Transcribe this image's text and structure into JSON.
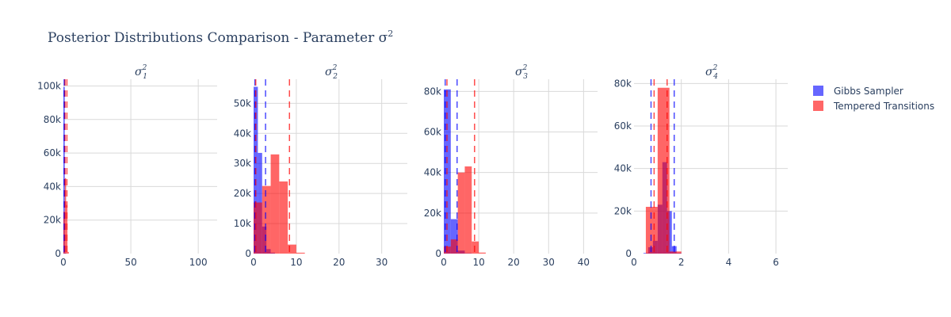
{
  "title": "Posterior Distributions Comparison - Parameter σ",
  "title_sup": "2",
  "legend": [
    {
      "name": "Gibbs Sampler",
      "color": "#0000ff"
    },
    {
      "name": "Tempered Transitions",
      "color": "#ff0000"
    }
  ],
  "colors": {
    "gibbs": "#0000ff",
    "tempered": "#ff0000",
    "grid": "#d9d9d9",
    "text": "#2a3f5f"
  },
  "chart_data": [
    {
      "type": "histogram",
      "subtitle": "σ",
      "sub_index": "1",
      "sup": "2",
      "xlim": [
        0,
        114
      ],
      "ylim": [
        0,
        104000
      ],
      "xticks": [
        {
          "v": 0,
          "label": "0"
        },
        {
          "v": 50,
          "label": "50"
        },
        {
          "v": 100,
          "label": "100"
        }
      ],
      "yticks": [
        {
          "v": 0,
          "label": "0"
        },
        {
          "v": 20000,
          "label": "20k"
        },
        {
          "v": 40000,
          "label": "40k"
        },
        {
          "v": 60000,
          "label": "60k"
        },
        {
          "v": 80000,
          "label": "80k"
        },
        {
          "v": 100000,
          "label": "100k"
        }
      ],
      "series": [
        {
          "name": "Gibbs Sampler",
          "bins": [
            {
              "x0": 0,
              "x1": 1,
              "y": 99500
            },
            {
              "x0": 1,
              "x1": 2,
              "y": 500
            }
          ]
        },
        {
          "name": "Tempered Transitions",
          "bins": [
            {
              "x0": 0,
              "x1": 1,
              "y": 25000
            },
            {
              "x0": 1,
              "x1": 2,
              "y": 45000
            },
            {
              "x0": 2,
              "x1": 3,
              "y": 29000
            },
            {
              "x0": 3,
              "x1": 4,
              "y": 1000
            }
          ]
        }
      ],
      "vlines": [
        {
          "series": "Gibbs Sampler",
          "x": [
            0.6,
            0.9
          ]
        },
        {
          "series": "Tempered Transitions",
          "x": [
            1.2,
            2.6
          ]
        }
      ]
    },
    {
      "type": "histogram",
      "subtitle": "σ",
      "sub_index": "2",
      "sup": "2",
      "xlim": [
        0,
        36
      ],
      "ylim": [
        0,
        58000
      ],
      "xticks": [
        {
          "v": 0,
          "label": "0"
        },
        {
          "v": 10,
          "label": "10"
        },
        {
          "v": 20,
          "label": "20"
        },
        {
          "v": 30,
          "label": "30"
        }
      ],
      "yticks": [
        {
          "v": 0,
          "label": "0"
        },
        {
          "v": 10000,
          "label": "10k"
        },
        {
          "v": 20000,
          "label": "20k"
        },
        {
          "v": 30000,
          "label": "30k"
        },
        {
          "v": 40000,
          "label": "40k"
        },
        {
          "v": 50000,
          "label": "50k"
        }
      ],
      "series": [
        {
          "name": "Gibbs Sampler",
          "bins": [
            {
              "x0": 0,
              "x1": 1,
              "y": 55500
            },
            {
              "x0": 1,
              "x1": 2,
              "y": 33500
            },
            {
              "x0": 2,
              "x1": 3,
              "y": 9000
            },
            {
              "x0": 3,
              "x1": 4,
              "y": 1500
            },
            {
              "x0": 4,
              "x1": 5,
              "y": 300
            }
          ]
        },
        {
          "name": "Tempered Transitions",
          "bins": [
            {
              "x0": 0,
              "x1": 2,
              "y": 17000
            },
            {
              "x0": 2,
              "x1": 4,
              "y": 22500
            },
            {
              "x0": 4,
              "x1": 6,
              "y": 33000
            },
            {
              "x0": 6,
              "x1": 8,
              "y": 24000
            },
            {
              "x0": 8,
              "x1": 10,
              "y": 3000
            },
            {
              "x0": 10,
              "x1": 12,
              "y": 300
            }
          ]
        }
      ],
      "vlines": [
        {
          "series": "Gibbs Sampler",
          "x": [
            0.3,
            2.8
          ]
        },
        {
          "series": "Tempered Transitions",
          "x": [
            0.5,
            8.4
          ]
        }
      ]
    },
    {
      "type": "histogram",
      "subtitle": "σ",
      "sub_index": "3",
      "sup": "2",
      "xlim": [
        0,
        44
      ],
      "ylim": [
        0,
        86000
      ],
      "xticks": [
        {
          "v": 0,
          "label": "0"
        },
        {
          "v": 10,
          "label": "10"
        },
        {
          "v": 20,
          "label": "20"
        },
        {
          "v": 30,
          "label": "30"
        },
        {
          "v": 40,
          "label": "40"
        }
      ],
      "yticks": [
        {
          "v": 0,
          "label": "0"
        },
        {
          "v": 20000,
          "label": "20k"
        },
        {
          "v": 40000,
          "label": "40k"
        },
        {
          "v": 60000,
          "label": "60k"
        },
        {
          "v": 80000,
          "label": "80k"
        }
      ],
      "series": [
        {
          "name": "Gibbs Sampler",
          "bins": [
            {
              "x0": 0,
              "x1": 2,
              "y": 81000
            },
            {
              "x0": 2,
              "x1": 4,
              "y": 17000
            },
            {
              "x0": 4,
              "x1": 6,
              "y": 1500
            },
            {
              "x0": 6,
              "x1": 8,
              "y": 200
            }
          ]
        },
        {
          "name": "Tempered Transitions",
          "bins": [
            {
              "x0": 0,
              "x1": 2,
              "y": 3500
            },
            {
              "x0": 2,
              "x1": 4,
              "y": 7000
            },
            {
              "x0": 4,
              "x1": 6,
              "y": 40000
            },
            {
              "x0": 6,
              "x1": 8,
              "y": 43000
            },
            {
              "x0": 8,
              "x1": 10,
              "y": 6000
            },
            {
              "x0": 10,
              "x1": 12,
              "y": 500
            }
          ]
        }
      ],
      "vlines": [
        {
          "series": "Gibbs Sampler",
          "x": [
            0.4,
            3.8
          ]
        },
        {
          "series": "Tempered Transitions",
          "x": [
            0.9,
            8.8
          ]
        }
      ]
    },
    {
      "type": "histogram",
      "subtitle": "σ",
      "sub_index": "4",
      "sup": "2",
      "xlim": [
        0,
        6.5
      ],
      "ylim": [
        0,
        82000
      ],
      "xticks": [
        {
          "v": 0,
          "label": "0"
        },
        {
          "v": 2,
          "label": "2"
        },
        {
          "v": 4,
          "label": "4"
        },
        {
          "v": 6,
          "label": "6"
        }
      ],
      "yticks": [
        {
          "v": 0,
          "label": "0"
        },
        {
          "v": 20000,
          "label": "20k"
        },
        {
          "v": 40000,
          "label": "40k"
        },
        {
          "v": 60000,
          "label": "60k"
        },
        {
          "v": 80000,
          "label": "80k"
        }
      ],
      "series": [
        {
          "name": "Gibbs Sampler",
          "bins": [
            {
              "x0": 0.4,
              "x1": 0.6,
              "y": 300
            },
            {
              "x0": 0.6,
              "x1": 0.8,
              "y": 3000
            },
            {
              "x0": 0.8,
              "x1": 1.0,
              "y": 6000
            },
            {
              "x0": 1.0,
              "x1": 1.2,
              "y": 23000
            },
            {
              "x0": 1.2,
              "x1": 1.4,
              "y": 43000
            },
            {
              "x0": 1.4,
              "x1": 1.6,
              "y": 20000
            },
            {
              "x0": 1.6,
              "x1": 1.8,
              "y": 3500
            },
            {
              "x0": 1.8,
              "x1": 2.0,
              "y": 300
            }
          ]
        },
        {
          "name": "Tempered Transitions",
          "bins": [
            {
              "x0": 0.5,
              "x1": 1.0,
              "y": 22000
            },
            {
              "x0": 1.0,
              "x1": 1.5,
              "y": 78000
            },
            {
              "x0": 1.5,
              "x1": 2.0,
              "y": 1000
            }
          ]
        }
      ],
      "vlines": [
        {
          "series": "Gibbs Sampler",
          "x": [
            0.72,
            1.7
          ]
        },
        {
          "series": "Tempered Transitions",
          "x": [
            0.85,
            1.4
          ]
        }
      ]
    }
  ]
}
